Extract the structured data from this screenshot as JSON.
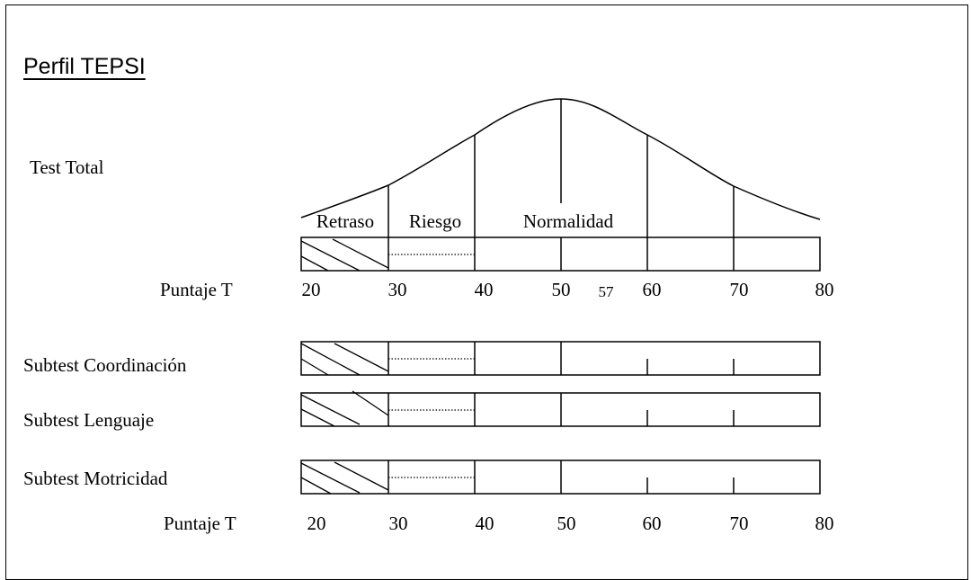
{
  "title": "Perfil TEPSI",
  "test_total_label": "Test Total",
  "categories": {
    "retraso": "Retraso",
    "riesgo": "Riesgo",
    "normalidad": "Normalidad"
  },
  "score_axis_label": "Puntaje T",
  "upper_ticks": [
    "20",
    "30",
    "40",
    "50",
    "57",
    "60",
    "70",
    "80"
  ],
  "lower_ticks": [
    "20",
    "30",
    "40",
    "50",
    "60",
    "70",
    "80"
  ],
  "total_score": "57",
  "subtests": [
    {
      "label": "Subtest Coordinación"
    },
    {
      "label": "Subtest Lenguaje"
    },
    {
      "label": "Subtest Motricidad"
    }
  ],
  "zone_colors": {
    "lines": "#000000",
    "background": "#ffffff"
  }
}
